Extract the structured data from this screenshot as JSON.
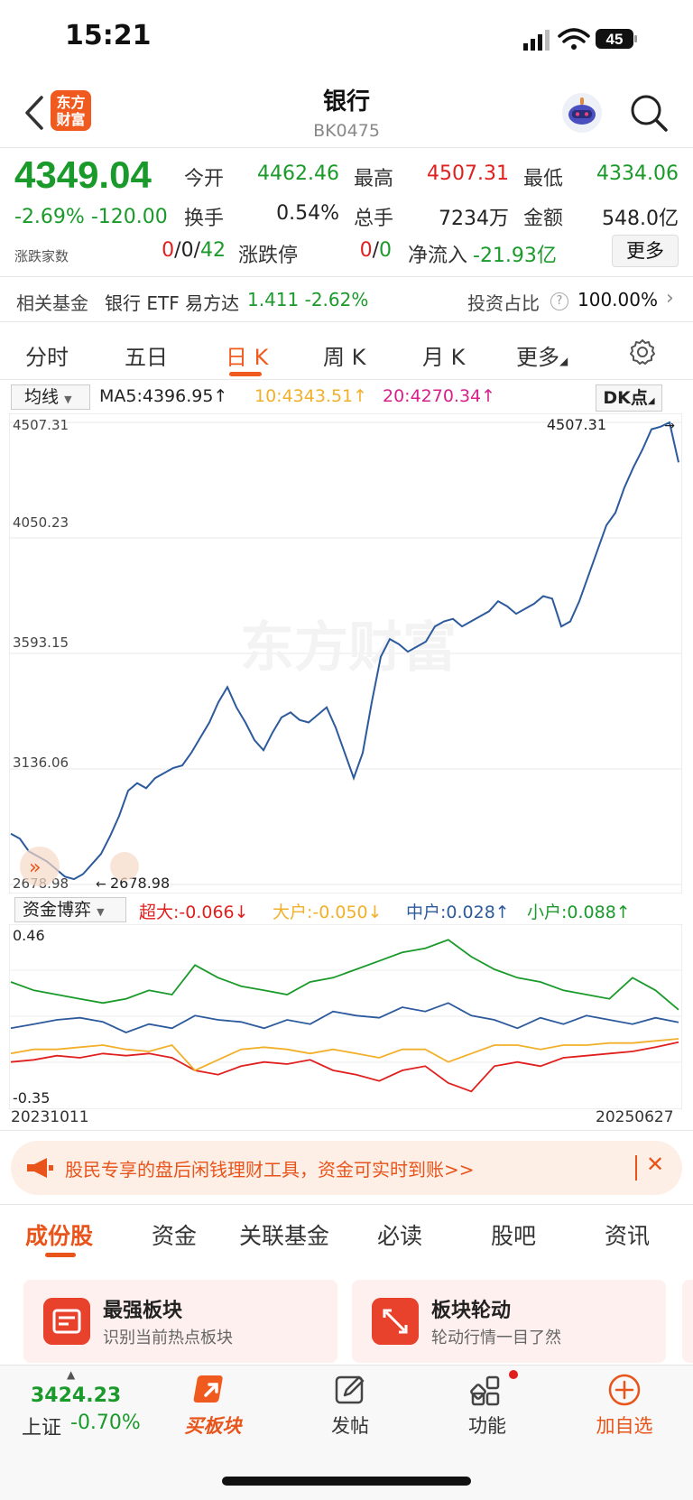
{
  "status": {
    "time": "15:21",
    "battery": "45"
  },
  "header": {
    "logo_text": "东方财富",
    "title": "银行",
    "code": "BK0475"
  },
  "quote": {
    "price": "4349.04",
    "change_pct": "-2.69%",
    "change_abs": "-120.00",
    "open_label": "今开",
    "open": "4462.46",
    "high_label": "最高",
    "high": "4507.31",
    "low_label": "最低",
    "low": "4334.06",
    "turnover_label": "换手",
    "turnover": "0.54%",
    "volume_label": "总手",
    "volume": "7234万",
    "amount_label": "金额",
    "amount": "548.0亿",
    "updown_label": "涨跌家数",
    "up_count": "0",
    "flat_count": "0",
    "down_count": "42",
    "limit_label": "涨跌停",
    "limit_up": "0",
    "limit_down": "0",
    "netflow_label": "净流入",
    "netflow": "-21.93亿",
    "more_label": "更多"
  },
  "fund": {
    "label": "相关基金",
    "name": "银行 ETF 易方达",
    "value": "1.411 -2.62%",
    "invest_label": "投资占比",
    "invest_value": "100.00%"
  },
  "chart_tabs": [
    "分时",
    "五日",
    "日 K",
    "周 K",
    "月 K",
    "更多"
  ],
  "ma": {
    "select": "均线",
    "ma5": "MA5:4396.95↑",
    "ma10": "10:4343.51↑",
    "ma20": "20:4270.34↑",
    "dk": "DK点",
    "colors": {
      "ma10": "#f2b02a",
      "ma20": "#d8208c"
    }
  },
  "chart_data": {
    "type": "line",
    "ylim": [
      2678.98,
      4507.31
    ],
    "y_ticks": [
      "4507.31",
      "4050.23",
      "3593.15",
      "3136.06",
      "2678.98"
    ],
    "high_marker": "4507.31",
    "low_marker": "2678.98",
    "x_range": [
      "20231011",
      "20250627"
    ],
    "series": [
      {
        "color": "#2c5a9c",
        "values": [
          2880,
          2860,
          2810,
          2790,
          2770,
          2740,
          2710,
          2700,
          2720,
          2760,
          2800,
          2870,
          2950,
          3050,
          3080,
          3060,
          3100,
          3120,
          3140,
          3150,
          3200,
          3260,
          3320,
          3400,
          3460,
          3380,
          3320,
          3250,
          3210,
          3280,
          3340,
          3360,
          3330,
          3320,
          3350,
          3380,
          3300,
          3200,
          3100,
          3200,
          3400,
          3580,
          3650,
          3630,
          3600,
          3620,
          3640,
          3700,
          3720,
          3730,
          3700,
          3720,
          3740,
          3760,
          3800,
          3780,
          3750,
          3770,
          3790,
          3820,
          3810,
          3700,
          3720,
          3800,
          3900,
          4000,
          4100,
          4150,
          4250,
          4330,
          4400,
          4480,
          4490,
          4507,
          4349
        ]
      }
    ]
  },
  "flow": {
    "select": "资金博弈",
    "super": "超大:-0.066↓",
    "large": "大户:-0.050↓",
    "mid": "中户:0.028↑",
    "small": "小户:0.088↑",
    "y_max": "0.46",
    "y_min": "-0.35",
    "date_start": "20231011",
    "date_end": "20250627",
    "colors": {
      "super": "#e0201e",
      "large": "#f2b02a",
      "mid": "#2c5a9c",
      "small": "#1a9a2a"
    }
  },
  "flow_data": {
    "type": "line",
    "ylim": [
      -0.35,
      0.46
    ],
    "series": [
      {
        "name": "超大",
        "color": "#e0201e",
        "values": [
          -0.16,
          -0.15,
          -0.13,
          -0.14,
          -0.12,
          -0.13,
          -0.12,
          -0.14,
          -0.2,
          -0.22,
          -0.18,
          -0.16,
          -0.17,
          -0.15,
          -0.2,
          -0.22,
          -0.25,
          -0.2,
          -0.18,
          -0.26,
          -0.3,
          -0.18,
          -0.16,
          -0.18,
          -0.14,
          -0.13,
          -0.12,
          -0.11,
          -0.09,
          -0.066
        ]
      },
      {
        "name": "大户",
        "color": "#f2b02a",
        "values": [
          -0.12,
          -0.1,
          -0.1,
          -0.09,
          -0.08,
          -0.1,
          -0.11,
          -0.08,
          -0.2,
          -0.15,
          -0.1,
          -0.09,
          -0.1,
          -0.12,
          -0.1,
          -0.12,
          -0.14,
          -0.1,
          -0.1,
          -0.16,
          -0.12,
          -0.08,
          -0.08,
          -0.1,
          -0.08,
          -0.08,
          -0.07,
          -0.07,
          -0.06,
          -0.05
        ]
      },
      {
        "name": "中户",
        "color": "#2c5a9c",
        "values": [
          0.0,
          0.02,
          0.04,
          0.05,
          0.03,
          -0.02,
          0.02,
          0.0,
          0.06,
          0.04,
          0.03,
          0.0,
          0.04,
          0.02,
          0.08,
          0.06,
          0.05,
          0.1,
          0.08,
          0.12,
          0.06,
          0.04,
          0.0,
          0.05,
          0.02,
          0.06,
          0.04,
          0.02,
          0.05,
          0.028
        ]
      },
      {
        "name": "小户",
        "color": "#1a9a2a",
        "values": [
          0.22,
          0.18,
          0.16,
          0.14,
          0.12,
          0.14,
          0.18,
          0.16,
          0.3,
          0.24,
          0.2,
          0.18,
          0.16,
          0.22,
          0.24,
          0.28,
          0.32,
          0.36,
          0.38,
          0.42,
          0.34,
          0.28,
          0.24,
          0.22,
          0.18,
          0.16,
          0.14,
          0.24,
          0.18,
          0.088
        ]
      }
    ]
  },
  "banner": {
    "text": "股民专享的盘后闲钱理财工具，资金可实时到账>>"
  },
  "sub_tabs": [
    "成份股",
    "资金",
    "关联基金",
    "必读",
    "股吧",
    "资讯"
  ],
  "cards": [
    {
      "title": "最强板块",
      "subtitle": "识别当前热点板块"
    },
    {
      "title": "板块轮动",
      "subtitle": "轮动行情一目了然"
    }
  ],
  "bottom_nav": {
    "index_value": "3424.23",
    "index_name": "上证",
    "index_change": "-0.70%",
    "items": [
      {
        "label": "买板块",
        "icon": "buy-sector-icon"
      },
      {
        "label": "发帖",
        "icon": "post-icon"
      },
      {
        "label": "功能",
        "icon": "function-icon"
      },
      {
        "label": "加自选",
        "icon": "add-watchlist-icon"
      }
    ]
  }
}
